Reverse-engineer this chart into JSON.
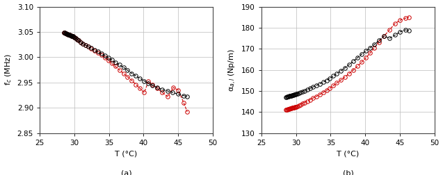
{
  "left": {
    "title": "(a)",
    "xlabel": "T (°C)",
    "ylabel": "f$_c$ (MHz)",
    "xlim": [
      25,
      50
    ],
    "ylim": [
      2.85,
      3.1
    ],
    "yticks": [
      2.85,
      2.9,
      2.95,
      3.0,
      3.05,
      3.1
    ],
    "xticks": [
      25,
      30,
      35,
      40,
      45,
      50
    ],
    "black_x": [
      28.5,
      28.6,
      28.7,
      28.8,
      28.9,
      29.0,
      29.1,
      29.2,
      29.3,
      29.4,
      29.5,
      29.6,
      29.7,
      29.8,
      29.9,
      30.0,
      30.2,
      30.4,
      30.6,
      30.9,
      31.2,
      31.6,
      32.0,
      32.4,
      32.9,
      33.4,
      33.9,
      34.4,
      34.9,
      35.4,
      35.9,
      36.5,
      37.1,
      37.7,
      38.3,
      38.9,
      39.5,
      40.1,
      40.7,
      41.3,
      42.0,
      42.7,
      43.5,
      44.2,
      45.0,
      45.8,
      46.3
    ],
    "black_y": [
      3.048,
      3.048,
      3.047,
      3.047,
      3.046,
      3.046,
      3.045,
      3.045,
      3.044,
      3.043,
      3.043,
      3.042,
      3.041,
      3.041,
      3.04,
      3.039,
      3.037,
      3.035,
      3.033,
      3.03,
      3.027,
      3.024,
      3.021,
      3.018,
      3.014,
      3.011,
      3.007,
      3.003,
      2.999,
      2.995,
      2.99,
      2.985,
      2.98,
      2.974,
      2.968,
      2.963,
      2.958,
      2.953,
      2.948,
      2.944,
      2.94,
      2.936,
      2.933,
      2.93,
      2.927,
      2.924,
      2.922
    ],
    "red_x": [
      28.5,
      28.6,
      28.7,
      28.8,
      28.9,
      29.0,
      29.1,
      29.2,
      29.3,
      29.4,
      29.5,
      29.6,
      29.7,
      29.8,
      29.9,
      30.0,
      30.2,
      30.4,
      30.6,
      30.9,
      31.2,
      31.6,
      32.0,
      32.4,
      32.9,
      33.4,
      33.9,
      34.4,
      34.9,
      35.4,
      35.9,
      36.5,
      37.1,
      37.7,
      38.3,
      38.9,
      39.5,
      40.1,
      40.7,
      41.3,
      42.0,
      42.7,
      43.5,
      44.3,
      45.0,
      45.8,
      46.3
    ],
    "red_y": [
      3.048,
      3.048,
      3.047,
      3.047,
      3.046,
      3.046,
      3.045,
      3.045,
      3.044,
      3.043,
      3.043,
      3.042,
      3.041,
      3.041,
      3.04,
      3.039,
      3.037,
      3.035,
      3.033,
      3.03,
      3.027,
      3.024,
      3.021,
      3.017,
      3.013,
      3.009,
      3.004,
      2.999,
      2.994,
      2.988,
      2.982,
      2.975,
      2.968,
      2.961,
      2.954,
      2.946,
      2.938,
      2.93,
      2.952,
      2.945,
      2.938,
      2.93,
      2.922,
      2.94,
      2.935,
      2.91,
      2.892
    ]
  },
  "right": {
    "title": "(b)",
    "xlabel": "T (°C)",
    "ylabel": "α$_{a,l}$ (Np/m)",
    "xlim": [
      25,
      50
    ],
    "ylim": [
      130,
      190
    ],
    "yticks": [
      130,
      140,
      150,
      160,
      170,
      180,
      190
    ],
    "xticks": [
      25,
      30,
      35,
      40,
      45,
      50
    ],
    "black_x": [
      28.5,
      28.6,
      28.7,
      28.8,
      28.9,
      29.0,
      29.1,
      29.2,
      29.3,
      29.4,
      29.5,
      29.6,
      29.7,
      29.8,
      29.9,
      30.0,
      30.2,
      30.4,
      30.6,
      30.9,
      31.2,
      31.6,
      32.0,
      32.4,
      32.9,
      33.4,
      33.9,
      34.4,
      34.9,
      35.4,
      35.9,
      36.5,
      37.1,
      37.7,
      38.3,
      38.9,
      39.5,
      40.1,
      40.7,
      41.3,
      42.0,
      42.7,
      43.5,
      44.3,
      45.0,
      45.8,
      46.3
    ],
    "black_y": [
      147.0,
      147.1,
      147.2,
      147.3,
      147.4,
      147.5,
      147.6,
      147.7,
      147.8,
      147.9,
      148.0,
      148.1,
      148.2,
      148.3,
      148.4,
      148.5,
      148.7,
      149.0,
      149.3,
      149.7,
      150.1,
      150.6,
      151.2,
      151.8,
      152.5,
      153.3,
      154.1,
      155.0,
      156.0,
      157.1,
      158.3,
      159.6,
      161.0,
      162.5,
      164.1,
      165.8,
      167.5,
      169.0,
      170.5,
      172.0,
      174.0,
      176.0,
      175.0,
      176.5,
      178.0,
      179.0,
      178.5
    ],
    "red_x": [
      28.5,
      28.6,
      28.7,
      28.8,
      28.9,
      29.0,
      29.1,
      29.2,
      29.3,
      29.4,
      29.5,
      29.6,
      29.7,
      29.8,
      29.9,
      30.0,
      30.2,
      30.4,
      30.6,
      30.9,
      31.2,
      31.6,
      32.0,
      32.4,
      32.9,
      33.4,
      33.9,
      34.4,
      34.9,
      35.4,
      35.9,
      36.5,
      37.1,
      37.7,
      38.3,
      38.9,
      39.5,
      40.1,
      40.7,
      41.3,
      42.0,
      42.7,
      43.5,
      44.3,
      45.0,
      45.8,
      46.3
    ],
    "red_y": [
      141.0,
      141.1,
      141.2,
      141.3,
      141.4,
      141.5,
      141.6,
      141.7,
      141.8,
      141.9,
      142.0,
      142.1,
      142.2,
      142.3,
      142.4,
      142.5,
      142.8,
      143.1,
      143.5,
      144.0,
      144.5,
      145.1,
      145.8,
      146.5,
      147.3,
      148.2,
      149.2,
      150.2,
      151.3,
      152.5,
      153.8,
      155.2,
      156.7,
      158.3,
      160.0,
      161.8,
      163.7,
      165.7,
      168.0,
      170.5,
      173.2,
      176.0,
      179.0,
      182.0,
      183.5,
      184.5,
      185.0
    ]
  },
  "black_color": "#000000",
  "red_color": "#cc0000",
  "marker_size": 4,
  "line_width": 0.8,
  "grid_color": "#bbbbbb",
  "bg_color": "#ffffff"
}
